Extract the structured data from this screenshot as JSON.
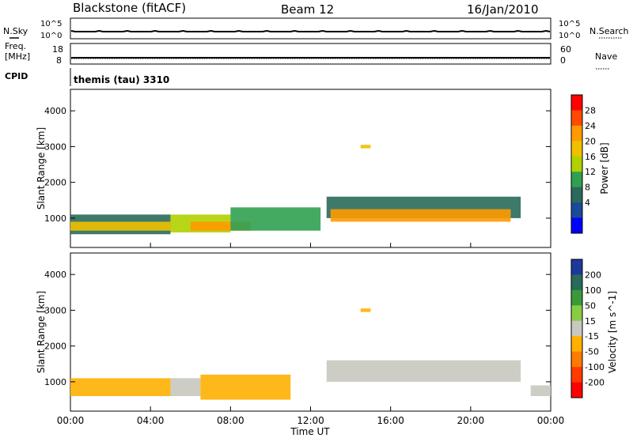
{
  "header": {
    "station": "Blackstone (fitACF)",
    "beam": "Beam 12",
    "date": "16/Jan/2010"
  },
  "status_panels": {
    "nsky_label": "N.Sky",
    "nsearch_label": "N.Search",
    "freq_label_1": "Freq.",
    "freq_label_2": "[MHz]",
    "nave_label": "Nave",
    "cpid_label": "CPID",
    "noise_ticks_left": [
      "10^5",
      "10^0"
    ],
    "noise_ticks_right": [
      "10^5",
      "10^0"
    ],
    "freq_ticks": [
      "18",
      "8"
    ],
    "nave_ticks": [
      "60",
      "0"
    ],
    "cpid_text": "themis (tau) 3310"
  },
  "power_panel": {
    "ylabel": "Slant Range [km]",
    "colorbar_label": "Power [dB]",
    "colorbar_ticks": [
      "28",
      "24",
      "20",
      "16",
      "12",
      "8",
      "4"
    ],
    "colorbar_colors": [
      "#ff0000",
      "#ff4a00",
      "#ff9a00",
      "#f0c000",
      "#b0d000",
      "#30a050",
      "#2a6a5a",
      "#1a4a9a",
      "#0000ff"
    ]
  },
  "velocity_panel": {
    "ylabel": "Slant Range [km]",
    "colorbar_label": "Velocity [m s^-1]",
    "colorbar_ticks": [
      "200",
      "100",
      "50",
      "15",
      "-15",
      "-50",
      "-100",
      "-200"
    ],
    "colorbar_colors": [
      "#1d3a9a",
      "#2a6a5a",
      "#3a9a3a",
      "#88cc44",
      "#c8c8c0",
      "#ffb000",
      "#ff7a00",
      "#ff3a00",
      "#ff0000"
    ]
  },
  "x_axis": {
    "label": "Time UT",
    "ticks": [
      "00:00",
      "04:00",
      "08:00",
      "12:00",
      "16:00",
      "20:00",
      "00:00"
    ]
  },
  "chart_data": {
    "type": "heatmap",
    "title": "Blackstone (fitACF)   Beam 12   16/Jan/2010",
    "xlabel": "Time UT",
    "ylabel": "Slant Range [km]",
    "x_range_hours": [
      0,
      24
    ],
    "y_range_km": [
      180,
      4600
    ],
    "y_ticks": [
      1000,
      2000,
      3000,
      4000
    ],
    "power_scale_db": [
      0,
      30
    ],
    "velocity_scale": [
      -200,
      200
    ],
    "power_bands": [
      {
        "t0": 0.0,
        "t1": 5.0,
        "r0": 550,
        "r1": 1100,
        "power": 8
      },
      {
        "t0": 0.0,
        "t1": 5.0,
        "r0": 650,
        "r1": 900,
        "power": 18
      },
      {
        "t0": 5.0,
        "t1": 8.0,
        "r0": 600,
        "r1": 1100,
        "power": 16
      },
      {
        "t0": 6.0,
        "t1": 9.0,
        "r0": 650,
        "r1": 900,
        "power": 22
      },
      {
        "t0": 8.0,
        "t1": 12.5,
        "r0": 650,
        "r1": 1300,
        "power": 10
      },
      {
        "t0": 12.8,
        "t1": 22.5,
        "r0": 1000,
        "r1": 1600,
        "power": 8
      },
      {
        "t0": 13.0,
        "t1": 22.0,
        "r0": 900,
        "r1": 1250,
        "power": 22
      },
      {
        "t0": 14.5,
        "t1": 15.0,
        "r0": 2950,
        "r1": 3050,
        "power": 18
      }
    ],
    "velocity_bands": [
      {
        "t0": 0.0,
        "t1": 5.0,
        "r0": 600,
        "r1": 1100,
        "velocity": -40
      },
      {
        "t0": 5.0,
        "t1": 6.5,
        "r0": 600,
        "r1": 1100,
        "velocity": 0
      },
      {
        "t0": 6.5,
        "t1": 11.0,
        "r0": 500,
        "r1": 1200,
        "velocity": -40
      },
      {
        "t0": 12.8,
        "t1": 22.5,
        "r0": 1000,
        "r1": 1600,
        "velocity": 0
      },
      {
        "t0": 23.0,
        "t1": 24.0,
        "r0": 600,
        "r1": 900,
        "velocity": 0
      },
      {
        "t0": 14.5,
        "t1": 15.0,
        "r0": 2950,
        "r1": 3050,
        "velocity": -40
      }
    ]
  }
}
